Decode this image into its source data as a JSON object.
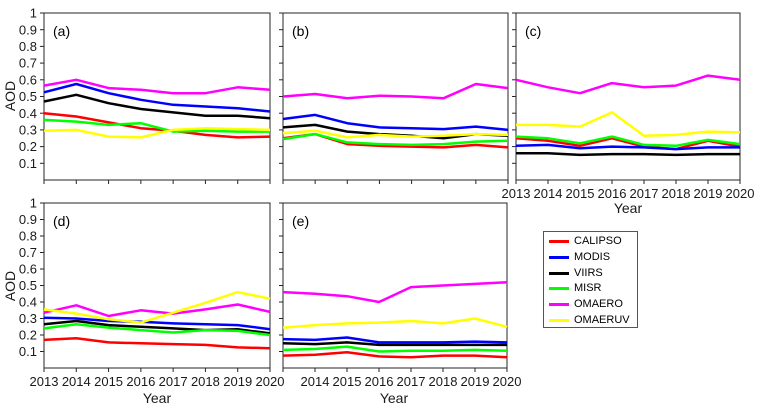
{
  "figure": {
    "ylabel": "AOD",
    "xlabel": "Year",
    "series_colors": {
      "CALIPSO": "#ff0000",
      "MODIS": "#0000ff",
      "VIIRS": "#000000",
      "MISR": "#00ff00",
      "OMAERO": "#ff00ff",
      "OMAERUV": "#ffff00"
    },
    "legend": {
      "items": [
        {
          "label": "CALIPSO",
          "color": "#ff0000"
        },
        {
          "label": "MODIS",
          "color": "#0000ff"
        },
        {
          "label": "VIIRS",
          "color": "#000000"
        },
        {
          "label": "MISR",
          "color": "#00ff00"
        },
        {
          "label": "OMAERO",
          "color": "#ff00ff"
        },
        {
          "label": "OMAERUV",
          "color": "#ffff00"
        }
      ]
    }
  },
  "chart_data": [
    {
      "type": "line",
      "label": "(a)",
      "x": [
        2013,
        2014,
        2015,
        2016,
        2017,
        2018,
        2019,
        2020
      ],
      "ylim": [
        0,
        1
      ],
      "yticks": [
        0.1,
        0.2,
        0.3,
        0.4,
        0.5,
        0.6,
        0.7,
        0.8,
        0.9,
        1
      ],
      "ytick_labels": [
        "0.1",
        "0.2",
        "0.3",
        "0.4",
        "0.5",
        "0.6",
        "0.7",
        "0.8",
        "0.9",
        "1"
      ],
      "xtick_labels": [
        "",
        "",
        "",
        "",
        "",
        "",
        "",
        ""
      ],
      "show_ytick_labels": true,
      "series": [
        {
          "name": "CALIPSO",
          "values": [
            0.4,
            0.38,
            0.345,
            0.31,
            0.295,
            0.27,
            0.255,
            0.26
          ]
        },
        {
          "name": "MODIS",
          "values": [
            0.525,
            0.575,
            0.52,
            0.48,
            0.45,
            0.44,
            0.43,
            0.41
          ]
        },
        {
          "name": "VIIRS",
          "values": [
            0.47,
            0.51,
            0.46,
            0.425,
            0.405,
            0.385,
            0.385,
            0.37
          ]
        },
        {
          "name": "MISR",
          "values": [
            0.36,
            0.35,
            0.33,
            0.34,
            0.29,
            0.295,
            0.29,
            0.29
          ]
        },
        {
          "name": "OMAERO",
          "values": [
            0.565,
            0.6,
            0.55,
            0.54,
            0.52,
            0.52,
            0.555,
            0.54
          ]
        },
        {
          "name": "OMAERUV",
          "values": [
            0.295,
            0.3,
            0.26,
            0.255,
            0.3,
            0.31,
            0.305,
            0.3
          ]
        }
      ]
    },
    {
      "type": "line",
      "label": "(b)",
      "x": [
        2013,
        2014,
        2015,
        2016,
        2017,
        2018,
        2019,
        2020
      ],
      "ylim": [
        0,
        1
      ],
      "yticks": [
        0.1,
        0.2,
        0.3,
        0.4,
        0.5,
        0.6,
        0.7,
        0.8,
        0.9,
        1
      ],
      "ytick_labels": [
        "0.1",
        "0.2",
        "0.3",
        "0.4",
        "0.5",
        "0.6",
        "0.7",
        "0.8",
        "0.9",
        "1"
      ],
      "xtick_labels": [
        "",
        "",
        "",
        "",
        "",
        "",
        "",
        ""
      ],
      "show_ytick_labels": false,
      "series": [
        {
          "name": "CALIPSO",
          "values": [
            0.25,
            0.275,
            0.215,
            0.205,
            0.2,
            0.195,
            0.21,
            0.195
          ]
        },
        {
          "name": "MODIS",
          "values": [
            0.365,
            0.39,
            0.34,
            0.315,
            0.31,
            0.305,
            0.32,
            0.3
          ]
        },
        {
          "name": "VIIRS",
          "values": [
            0.315,
            0.33,
            0.29,
            0.275,
            0.265,
            0.25,
            0.275,
            0.265
          ]
        },
        {
          "name": "MISR",
          "values": [
            0.245,
            0.275,
            0.225,
            0.215,
            0.21,
            0.215,
            0.23,
            0.235
          ]
        },
        {
          "name": "OMAERO",
          "values": [
            0.5,
            0.515,
            0.49,
            0.505,
            0.5,
            0.49,
            0.575,
            0.55
          ]
        },
        {
          "name": "OMAERUV",
          "values": [
            0.28,
            0.295,
            0.255,
            0.27,
            0.26,
            0.265,
            0.275,
            0.27
          ]
        }
      ]
    },
    {
      "type": "line",
      "label": "(c)",
      "x": [
        2013,
        2014,
        2015,
        2016,
        2017,
        2018,
        2019,
        2020
      ],
      "xlabel": "Year",
      "ylim": [
        0,
        1
      ],
      "yticks": [
        0.1,
        0.2,
        0.3,
        0.4,
        0.5,
        0.6,
        0.7,
        0.8,
        0.9,
        1
      ],
      "ytick_labels": [
        "0.1",
        "0.2",
        "0.3",
        "0.4",
        "0.5",
        "0.6",
        "0.7",
        "0.8",
        "0.9",
        "1"
      ],
      "xtick_labels": [
        "2013",
        "2014",
        "2015",
        "2016",
        "2017",
        "2018",
        "2019",
        "2020"
      ],
      "show_ytick_labels": false,
      "series": [
        {
          "name": "CALIPSO",
          "values": [
            0.25,
            0.235,
            0.205,
            0.25,
            0.2,
            0.185,
            0.235,
            0.2
          ]
        },
        {
          "name": "MODIS",
          "values": [
            0.205,
            0.21,
            0.19,
            0.2,
            0.195,
            0.185,
            0.195,
            0.195
          ]
        },
        {
          "name": "VIIRS",
          "values": [
            0.16,
            0.16,
            0.15,
            0.155,
            0.155,
            0.15,
            0.155,
            0.155
          ]
        },
        {
          "name": "MISR",
          "values": [
            0.26,
            0.25,
            0.22,
            0.26,
            0.21,
            0.205,
            0.24,
            0.215
          ]
        },
        {
          "name": "OMAERO",
          "values": [
            0.6,
            0.555,
            0.52,
            0.58,
            0.555,
            0.565,
            0.625,
            0.6
          ]
        },
        {
          "name": "OMAERUV",
          "values": [
            0.33,
            0.33,
            0.32,
            0.405,
            0.265,
            0.27,
            0.29,
            0.285
          ]
        }
      ]
    },
    {
      "type": "line",
      "label": "(d)",
      "x": [
        2013,
        2014,
        2015,
        2016,
        2017,
        2018,
        2019,
        2020
      ],
      "xlabel": "Year",
      "ylim": [
        0,
        1
      ],
      "yticks": [
        0.1,
        0.2,
        0.3,
        0.4,
        0.5,
        0.6,
        0.7,
        0.8,
        0.9,
        1
      ],
      "ytick_labels": [
        "0.1",
        "0.2",
        "0.3",
        "0.4",
        "0.5",
        "0.6",
        "0.7",
        "0.8",
        "0.9",
        "1"
      ],
      "xtick_labels": [
        "2013",
        "2014",
        "2015",
        "2016",
        "2017",
        "2018",
        "2019",
        "2020"
      ],
      "show_ytick_labels": true,
      "series": [
        {
          "name": "CALIPSO",
          "values": [
            0.17,
            0.18,
            0.155,
            0.15,
            0.145,
            0.14,
            0.125,
            0.12
          ]
        },
        {
          "name": "MODIS",
          "values": [
            0.305,
            0.3,
            0.285,
            0.28,
            0.27,
            0.265,
            0.26,
            0.235
          ]
        },
        {
          "name": "VIIRS",
          "values": [
            0.265,
            0.285,
            0.26,
            0.25,
            0.24,
            0.23,
            0.235,
            0.21
          ]
        },
        {
          "name": "MISR",
          "values": [
            0.24,
            0.265,
            0.245,
            0.23,
            0.215,
            0.23,
            0.225,
            0.2
          ]
        },
        {
          "name": "OMAERO",
          "values": [
            0.335,
            0.38,
            0.315,
            0.35,
            0.33,
            0.355,
            0.385,
            0.34
          ]
        },
        {
          "name": "OMAERUV",
          "values": [
            0.355,
            0.33,
            0.295,
            0.275,
            0.335,
            0.395,
            0.46,
            0.42
          ]
        }
      ]
    },
    {
      "type": "line",
      "label": "(e)",
      "x": [
        2013,
        2014,
        2015,
        2016,
        2017,
        2018,
        2019,
        2020
      ],
      "xlabel": "Year",
      "ylim": [
        0,
        1
      ],
      "yticks": [
        0.1,
        0.2,
        0.3,
        0.4,
        0.5,
        0.6,
        0.7,
        0.8,
        0.9,
        1
      ],
      "ytick_labels": [
        "0.1",
        "0.2",
        "0.3",
        "0.4",
        "0.5",
        "0.6",
        "0.7",
        "0.8",
        "0.9",
        "1"
      ],
      "xtick_labels": [
        "",
        "2014",
        "2015",
        "2016",
        "2017",
        "2018",
        "2019",
        "2020"
      ],
      "show_ytick_labels": false,
      "series": [
        {
          "name": "CALIPSO",
          "values": [
            0.075,
            0.08,
            0.095,
            0.07,
            0.065,
            0.075,
            0.075,
            0.065
          ]
        },
        {
          "name": "MODIS",
          "values": [
            0.175,
            0.17,
            0.185,
            0.155,
            0.155,
            0.155,
            0.16,
            0.155
          ]
        },
        {
          "name": "VIIRS",
          "values": [
            0.15,
            0.145,
            0.155,
            0.14,
            0.14,
            0.14,
            0.14,
            0.14
          ]
        },
        {
          "name": "MISR",
          "values": [
            0.11,
            0.115,
            0.13,
            0.1,
            0.105,
            0.105,
            0.11,
            0.105
          ]
        },
        {
          "name": "OMAERO",
          "values": [
            0.46,
            0.45,
            0.435,
            0.4,
            0.49,
            0.5,
            0.51,
            0.52
          ]
        },
        {
          "name": "OMAERUV",
          "values": [
            0.245,
            0.26,
            0.27,
            0.275,
            0.285,
            0.27,
            0.3,
            0.25
          ]
        }
      ]
    }
  ]
}
